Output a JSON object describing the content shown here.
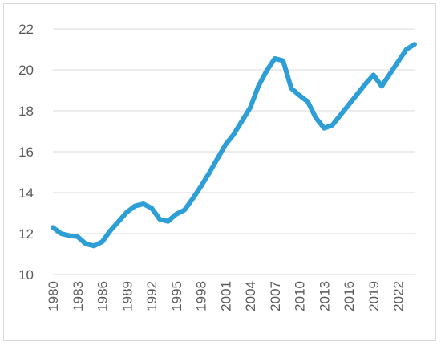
{
  "chart_data": {
    "type": "line",
    "title": "",
    "xlabel": "",
    "ylabel": "",
    "ylim": [
      10,
      22
    ],
    "y_ticks": [
      10,
      12,
      14,
      16,
      18,
      20,
      22
    ],
    "x_tick_labels": [
      "1980",
      "1983",
      "1986",
      "1989",
      "1992",
      "1995",
      "1998",
      "2001",
      "2004",
      "2007",
      "2010",
      "2013",
      "2016",
      "2019",
      "2022"
    ],
    "grid": "horizontal",
    "legend": "none",
    "line_color": "#2e9fd6",
    "x": [
      1980,
      1981,
      1982,
      1983,
      1984,
      1985,
      1986,
      1987,
      1988,
      1989,
      1990,
      1991,
      1992,
      1993,
      1994,
      1995,
      1996,
      1997,
      1998,
      1999,
      2000,
      2001,
      2002,
      2003,
      2004,
      2005,
      2006,
      2007,
      2008,
      2009,
      2010,
      2011,
      2012,
      2013,
      2014,
      2015,
      2016,
      2017,
      2018,
      2019,
      2020,
      2021,
      2022,
      2023,
      2024
    ],
    "series": [
      {
        "values": [
          12.3,
          12.0,
          11.9,
          11.85,
          11.5,
          11.4,
          11.6,
          12.15,
          12.6,
          13.05,
          13.35,
          13.45,
          13.25,
          12.7,
          12.6,
          12.95,
          13.15,
          13.7,
          14.3,
          14.95,
          15.65,
          16.35,
          16.85,
          17.5,
          18.15,
          19.2,
          19.95,
          20.55,
          20.45,
          19.1,
          18.75,
          18.45,
          17.65,
          17.15,
          17.3,
          17.8,
          18.3,
          18.8,
          19.3,
          19.75,
          19.2,
          19.8,
          20.4,
          21.0,
          21.25
        ]
      }
    ]
  }
}
